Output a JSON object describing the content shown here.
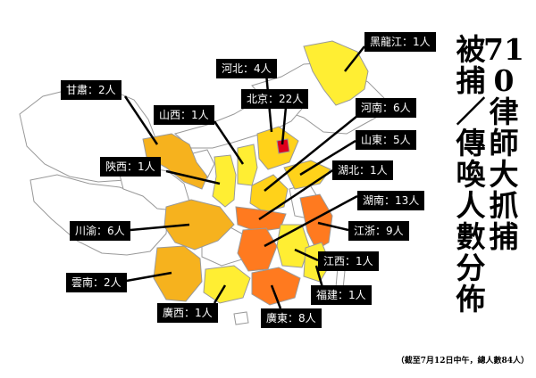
{
  "title": {
    "line1": "710律師大抓捕",
    "line2": "被捕／傳喚人數分佈"
  },
  "footnote": "（截至7月12日中午，總人數84人）",
  "colors": {
    "ocean": "#ffffff",
    "border": "#999999",
    "level_1": "#ffee33",
    "level_low": "#ffd21a",
    "level_mid": "#f6b21e",
    "level_high": "#ff7a1f",
    "level_top": "#e0001b",
    "label_bg": "#000000"
  },
  "regions": [
    {
      "id": "heilongjiang",
      "text": "黑龍江：1人",
      "count": 1
    },
    {
      "id": "hebei",
      "text": "河北：4人",
      "count": 4
    },
    {
      "id": "beijing",
      "text": "北京：22人",
      "count": 22
    },
    {
      "id": "gansu",
      "text": "甘肅：2人",
      "count": 2
    },
    {
      "id": "shanxi",
      "text": "山西：1人",
      "count": 1
    },
    {
      "id": "henan",
      "text": "河南：6人",
      "count": 6
    },
    {
      "id": "shandong",
      "text": "山東：5人",
      "count": 5
    },
    {
      "id": "shaanxi",
      "text": "陜西：1人",
      "count": 1
    },
    {
      "id": "hubei",
      "text": "湖北：1人",
      "count": 1
    },
    {
      "id": "hunan",
      "text": "湖南：13人",
      "count": 13
    },
    {
      "id": "chuanyu",
      "text": "川渝：6人",
      "count": 6
    },
    {
      "id": "jiangzhe",
      "text": "江浙：9人",
      "count": 9
    },
    {
      "id": "jiangxi",
      "text": "江西：1人",
      "count": 1
    },
    {
      "id": "yunnan",
      "text": "雲南：2人",
      "count": 2
    },
    {
      "id": "fujian",
      "text": "福建：1人",
      "count": 1
    },
    {
      "id": "guangxi",
      "text": "廣西：1人",
      "count": 1
    },
    {
      "id": "guangdong",
      "text": "廣東：8人",
      "count": 8
    }
  ]
}
